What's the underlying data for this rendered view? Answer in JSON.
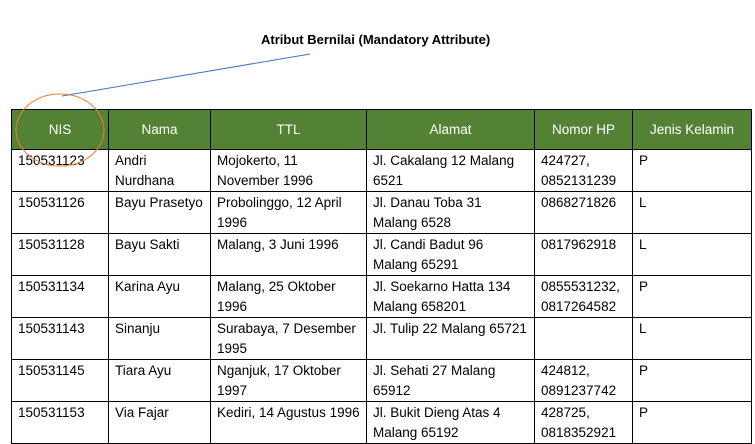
{
  "annotation": {
    "label": "Atribut Bernilai (Mandatory Attribute)"
  },
  "colors": {
    "header_bg": "#548235",
    "header_text": "#ffffff",
    "highlight_circle": "#ed7d31",
    "pointer_line": "#4472c4"
  },
  "table": {
    "headers": [
      "NIS",
      "Nama",
      "TTL",
      "Alamat",
      "Nomor HP",
      "Jenis Kelamin"
    ],
    "rows": [
      [
        "150531123",
        "Andri Nurdhana",
        "Mojokerto, 11 November 1996",
        "Jl. Cakalang 12 Malang 6521",
        "424727, 0852131239",
        "P"
      ],
      [
        "150531126",
        "Bayu Prasetyo",
        "Probolinggo, 12 April 1996",
        "Jl. Danau Toba 31 Malang 6528",
        "0868271826",
        "L"
      ],
      [
        "150531128",
        "Bayu Sakti",
        "Malang, 3 Juni 1996",
        "Jl. Candi Badut 96 Malang 65291",
        "0817962918",
        "L"
      ],
      [
        "150531134",
        "Karina Ayu",
        "Malang, 25 Oktober 1996",
        "Jl. Soekarno Hatta 134 Malang 658201",
        "0855531232, 0817264582",
        "P"
      ],
      [
        "150531143",
        "Sinanju",
        "Surabaya, 7 Desember 1995",
        "Jl. Tulip 22 Malang 65721",
        "",
        "L"
      ],
      [
        "150531145",
        "Tiara Ayu",
        "Nganjuk, 17 Oktober 1997",
        "Jl. Sehati 27 Malang 65912",
        "424812, 0891237742",
        "P"
      ],
      [
        "150531153",
        "Via Fajar",
        "Kediri, 14 Agustus 1996",
        "Jl. Bukit Dieng Atas 4 Malang 65192",
        "428725, 0818352921",
        "P"
      ]
    ]
  }
}
